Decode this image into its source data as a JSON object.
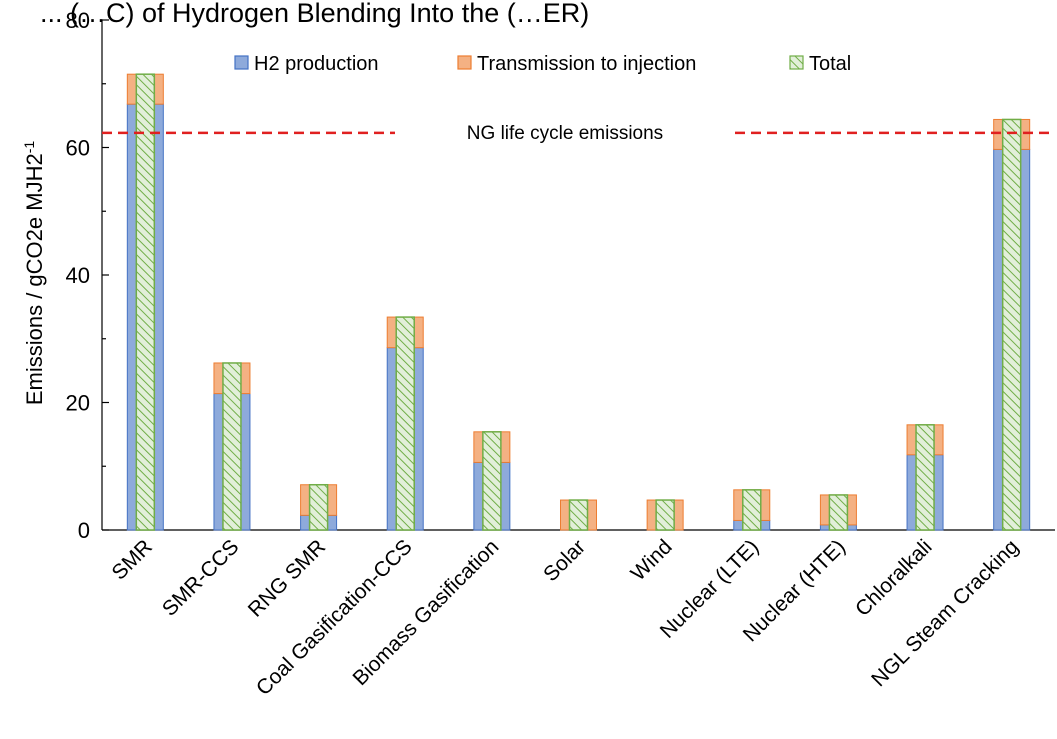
{
  "chart_data": {
    "type": "bar",
    "title": "... (…C) of Hydrogen Blending Into the (…ER)",
    "ylabel": "Emissions / gCO2e MJH2",
    "ylabel_superscript": "-1",
    "ylim": [
      0,
      80
    ],
    "yticks": [
      "0",
      "20",
      "40",
      "60",
      "80"
    ],
    "categories": [
      "SMR",
      "SMR-CCS",
      "RNG SMR",
      "Coal Gasification-CCS",
      "Biomass Gasification",
      "Solar",
      "Wind",
      "Nuclear (LTE)",
      "Nuclear (HTE)",
      "Chloralkali",
      "NGL Steam Cracking"
    ],
    "series": [
      {
        "name": "H2 production",
        "values": [
          66.8,
          21.4,
          2.3,
          28.6,
          10.6,
          0.0,
          0.0,
          1.5,
          0.8,
          11.8,
          59.7
        ],
        "color": "#8eaadb",
        "edge": "#4472c4"
      },
      {
        "name": "Transmission to injection",
        "values": [
          4.7,
          4.8,
          4.8,
          4.8,
          4.8,
          4.7,
          4.7,
          4.8,
          4.7,
          4.7,
          4.7
        ],
        "color": "#f4b183",
        "edge": "#ed7d31"
      },
      {
        "name": "Total",
        "values": [
          71.5,
          26.2,
          7.1,
          33.4,
          15.4,
          4.7,
          4.7,
          6.3,
          5.5,
          16.5,
          64.4
        ],
        "color": "#e2efd9",
        "edge": "#70ad47"
      }
    ],
    "reference_line": {
      "label": "NG life cycle emissions",
      "value": 62.3,
      "color": "#e02020"
    },
    "legend_position": "top",
    "grid": false
  }
}
